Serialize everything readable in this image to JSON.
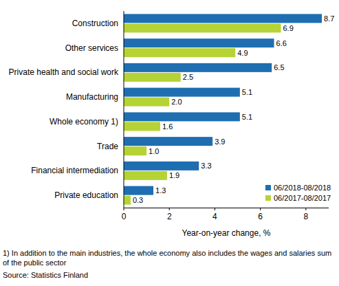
{
  "chart_data": {
    "type": "bar",
    "orientation": "horizontal",
    "categories": [
      "Construction",
      "Other services",
      "Private health and social work",
      "Manufacturing",
      "Whole economy 1)",
      "Trade",
      "Financial intermediation",
      "Private education"
    ],
    "series": [
      {
        "name": "06/2018-08/2018",
        "color": "#1f6eb1",
        "values": [
          8.7,
          6.6,
          6.5,
          5.1,
          5.1,
          3.9,
          3.3,
          1.3
        ],
        "value_labels": [
          "8.7",
          "6.6",
          "6.5",
          "5.1",
          "5.1",
          "3.9",
          "3.3",
          "1.3"
        ]
      },
      {
        "name": "06/2017-08/2017",
        "color": "#b5d334",
        "values": [
          6.9,
          4.9,
          2.5,
          2.0,
          1.6,
          1.0,
          1.9,
          0.3
        ],
        "value_labels": [
          "6.9",
          "4.9",
          "2.5",
          "2.0",
          "1.6",
          "1.0",
          "1.9",
          "0.3"
        ]
      }
    ],
    "x_label": "Year-on-year change, %",
    "xlim": [
      0,
      9
    ],
    "xticks": [
      0,
      2,
      4,
      6,
      8
    ],
    "grid": false,
    "legend": "lower right",
    "data_labels": true,
    "footnote": "1) In addition to the main industries, the whole economy also includes the wages and salaries sum of the public sector",
    "source": "Source: Statistics Finland"
  }
}
